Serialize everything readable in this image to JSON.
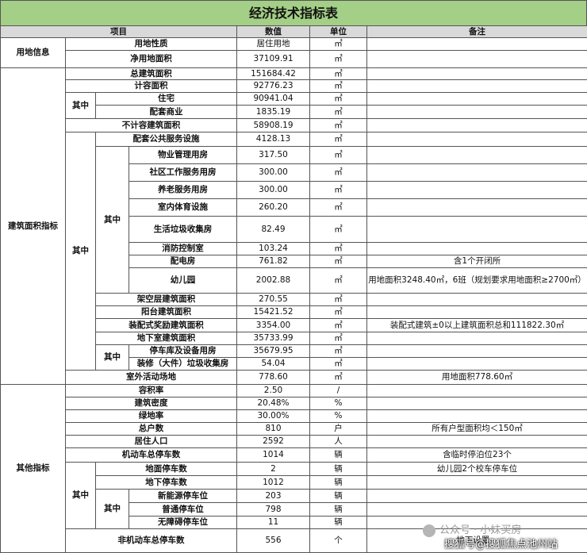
{
  "title": "经济技术指标表",
  "header": [
    "项目",
    "数值",
    "单位",
    "备注"
  ],
  "rows": [
    [
      "用地信息",
      "用地性质",
      "居住用地",
      "㎡"
    ],
    [
      "净用地面积",
      "37109.91",
      "㎡"
    ],
    [
      "建筑面积指标",
      "总建筑面积",
      "151684.42",
      "㎡"
    ],
    [
      "计容面积",
      "92776.23",
      "㎡"
    ],
    [
      "其中",
      "住宅",
      "90941.04",
      "㎡"
    ],
    [
      "配套商业",
      "1835.19",
      "㎡"
    ],
    [
      "不计容建筑面积",
      "58908.19",
      "㎡"
    ],
    [
      "其中",
      "配套公共服务设施",
      "4128.13",
      "㎡"
    ],
    [
      "其中",
      "物业管理用房",
      "317.50",
      "㎡"
    ],
    [
      "社区工作服务用房",
      "300.00",
      "㎡"
    ],
    [
      "养老服务用房",
      "300.00",
      "㎡"
    ],
    [
      "室内体育设施",
      "260.20",
      "㎡"
    ],
    [
      "生活垃圾收集房",
      "82.49",
      "㎡"
    ],
    [
      "消防控制室",
      "103.24",
      "㎡"
    ],
    [
      "配电房",
      "761.82",
      "㎡",
      "含1个开闭所"
    ],
    [
      "幼儿园",
      "2002.88",
      "㎡",
      "用地面积3248.40㎡，6班（规划要求用地面积≥2700㎡）"
    ],
    [
      "架空层建筑面积",
      "270.55",
      "㎡"
    ],
    [
      "阳台建筑面积",
      "15421.52",
      "㎡"
    ],
    [
      "装配式奖励建筑面积",
      "3354.00",
      "㎡",
      "装配式建筑±0以上建筑面积总和111822.30㎡"
    ],
    [
      "地下室建筑面积",
      "35733.99",
      "㎡"
    ],
    [
      "其中",
      "停车库及设备用房",
      "35679.95",
      "㎡"
    ],
    [
      "装修（大件）垃圾收集房",
      "54.04",
      "㎡"
    ],
    [
      "室外活动场地",
      "778.60",
      "㎡",
      "用地面积778.60㎡"
    ],
    [
      "其他指标",
      "容积率",
      "2.50",
      "/"
    ],
    [
      "建筑密度",
      "20.48%",
      "%"
    ],
    [
      "绿地率",
      "30.00%",
      "%"
    ],
    [
      "总户数",
      "810",
      "户",
      "所有户型面积均＜150㎡"
    ],
    [
      "居住人口",
      "2592",
      "人"
    ],
    [
      "机动车总停车数",
      "1014",
      "辆",
      "含临时停泊位23个"
    ],
    [
      "其中",
      "地面停车数",
      "2",
      "辆",
      "幼儿园2个校车停车位"
    ],
    [
      "地下停车数",
      "1012",
      "辆"
    ],
    [
      "其中",
      "新能源停车位",
      "203",
      "辆"
    ],
    [
      "普通停车位",
      "798",
      "辆"
    ],
    [
      "无障碍停车位",
      "11",
      "辆"
    ],
    [
      "非机动车总停车数",
      "556",
      "个",
      "地下设置，"
    ]
  ],
  "watermark": {
    "account": "公众号 · 小妹买房",
    "source": "搜狐号@搜狐焦点池州站"
  }
}
